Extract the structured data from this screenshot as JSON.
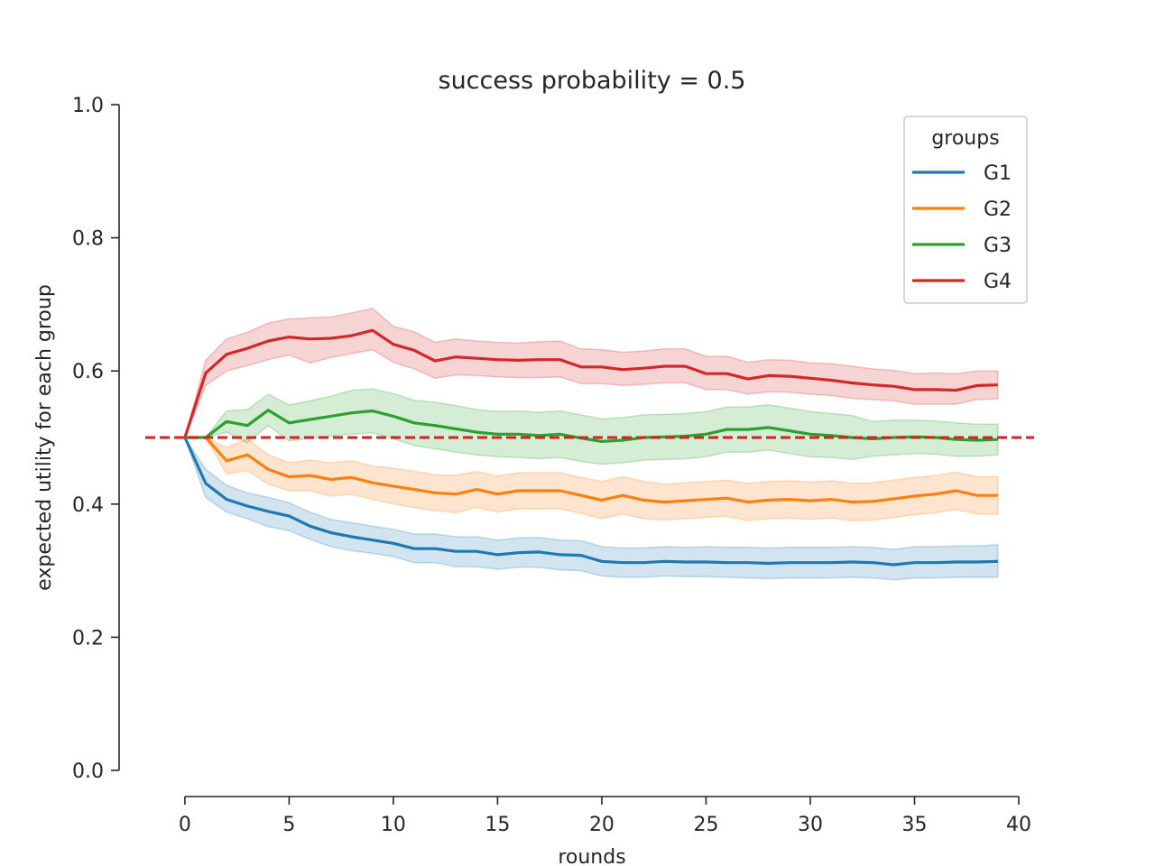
{
  "chart_data": {
    "type": "line",
    "title": "success probability = 0.5",
    "xlabel": "rounds",
    "ylabel": "expected utility for each group",
    "xlim": [
      -1.9,
      40
    ],
    "ylim": [
      0.0,
      1.0
    ],
    "xticks": [
      "0",
      "5",
      "10",
      "15",
      "20",
      "25",
      "30",
      "35",
      "40"
    ],
    "yticks": [
      "0.0",
      "0.2",
      "0.4",
      "0.6",
      "0.8",
      "1.0"
    ],
    "grid": false,
    "legend": {
      "title": "groups",
      "placement": "top-right"
    },
    "reference_line": {
      "y": 0.5,
      "style": "dashed",
      "color": "#e41a1c"
    },
    "x": [
      0,
      1,
      2,
      3,
      4,
      5,
      6,
      7,
      8,
      9,
      10,
      11,
      12,
      13,
      14,
      15,
      16,
      17,
      18,
      19,
      20,
      21,
      22,
      23,
      24,
      25,
      26,
      27,
      28,
      29,
      30,
      31,
      32,
      33,
      34,
      35,
      36,
      37,
      38,
      39
    ],
    "series": [
      {
        "name": "G1",
        "color": "#1f77b4",
        "values": [
          0.5,
          0.431,
          0.407,
          0.397,
          0.389,
          0.382,
          0.367,
          0.357,
          0.351,
          0.346,
          0.341,
          0.333,
          0.333,
          0.329,
          0.329,
          0.324,
          0.327,
          0.328,
          0.324,
          0.323,
          0.314,
          0.312,
          0.312,
          0.314,
          0.313,
          0.313,
          0.312,
          0.312,
          0.311,
          0.312,
          0.312,
          0.312,
          0.313,
          0.312,
          0.309,
          0.312,
          0.312,
          0.313,
          0.313,
          0.314
        ],
        "lower": [
          0.5,
          0.41,
          0.388,
          0.378,
          0.366,
          0.36,
          0.347,
          0.336,
          0.33,
          0.326,
          0.321,
          0.312,
          0.312,
          0.306,
          0.306,
          0.302,
          0.305,
          0.305,
          0.301,
          0.3,
          0.292,
          0.29,
          0.29,
          0.292,
          0.291,
          0.291,
          0.29,
          0.289,
          0.288,
          0.289,
          0.289,
          0.289,
          0.29,
          0.289,
          0.286,
          0.289,
          0.289,
          0.29,
          0.29,
          0.29
        ],
        "upper": [
          0.5,
          0.452,
          0.428,
          0.417,
          0.41,
          0.402,
          0.388,
          0.377,
          0.372,
          0.367,
          0.362,
          0.355,
          0.355,
          0.351,
          0.351,
          0.346,
          0.349,
          0.35,
          0.346,
          0.345,
          0.336,
          0.334,
          0.334,
          0.336,
          0.335,
          0.336,
          0.335,
          0.335,
          0.334,
          0.335,
          0.335,
          0.335,
          0.336,
          0.335,
          0.332,
          0.336,
          0.336,
          0.337,
          0.337,
          0.339
        ]
      },
      {
        "name": "G2",
        "color": "#ff7f0e",
        "values": [
          0.5,
          0.5,
          0.465,
          0.474,
          0.452,
          0.441,
          0.443,
          0.437,
          0.44,
          0.432,
          0.427,
          0.422,
          0.417,
          0.415,
          0.422,
          0.415,
          0.42,
          0.42,
          0.42,
          0.413,
          0.406,
          0.413,
          0.406,
          0.403,
          0.405,
          0.407,
          0.409,
          0.403,
          0.406,
          0.407,
          0.405,
          0.407,
          0.403,
          0.404,
          0.408,
          0.412,
          0.415,
          0.42,
          0.413,
          0.413
        ],
        "lower": [
          0.5,
          0.5,
          0.445,
          0.45,
          0.43,
          0.42,
          0.42,
          0.412,
          0.415,
          0.407,
          0.4,
          0.395,
          0.39,
          0.387,
          0.395,
          0.388,
          0.393,
          0.393,
          0.393,
          0.386,
          0.378,
          0.385,
          0.378,
          0.376,
          0.378,
          0.38,
          0.382,
          0.375,
          0.378,
          0.379,
          0.377,
          0.379,
          0.375,
          0.376,
          0.38,
          0.384,
          0.387,
          0.392,
          0.385,
          0.385
        ],
        "upper": [
          0.5,
          0.5,
          0.485,
          0.498,
          0.474,
          0.462,
          0.466,
          0.462,
          0.465,
          0.457,
          0.454,
          0.449,
          0.444,
          0.443,
          0.449,
          0.442,
          0.447,
          0.447,
          0.447,
          0.44,
          0.434,
          0.441,
          0.434,
          0.43,
          0.432,
          0.434,
          0.436,
          0.431,
          0.434,
          0.435,
          0.433,
          0.435,
          0.431,
          0.432,
          0.436,
          0.44,
          0.443,
          0.448,
          0.441,
          0.441
        ]
      },
      {
        "name": "G3",
        "color": "#2ca02c",
        "values": [
          0.5,
          0.5,
          0.524,
          0.518,
          0.541,
          0.522,
          0.527,
          0.532,
          0.537,
          0.54,
          0.532,
          0.522,
          0.518,
          0.513,
          0.508,
          0.505,
          0.505,
          0.503,
          0.505,
          0.499,
          0.494,
          0.496,
          0.5,
          0.501,
          0.502,
          0.505,
          0.512,
          0.512,
          0.515,
          0.51,
          0.505,
          0.503,
          0.5,
          0.498,
          0.5,
          0.501,
          0.5,
          0.497,
          0.496,
          0.497
        ],
        "lower": [
          0.5,
          0.5,
          0.508,
          0.492,
          0.518,
          0.495,
          0.499,
          0.502,
          0.505,
          0.507,
          0.498,
          0.488,
          0.483,
          0.478,
          0.474,
          0.471,
          0.47,
          0.468,
          0.47,
          0.464,
          0.46,
          0.462,
          0.466,
          0.467,
          0.468,
          0.471,
          0.478,
          0.478,
          0.481,
          0.476,
          0.471,
          0.47,
          0.467,
          0.472,
          0.474,
          0.476,
          0.475,
          0.472,
          0.472,
          0.474
        ],
        "upper": [
          0.5,
          0.5,
          0.54,
          0.542,
          0.565,
          0.549,
          0.555,
          0.562,
          0.571,
          0.573,
          0.566,
          0.556,
          0.553,
          0.548,
          0.542,
          0.539,
          0.54,
          0.538,
          0.54,
          0.534,
          0.528,
          0.53,
          0.534,
          0.535,
          0.536,
          0.539,
          0.546,
          0.546,
          0.549,
          0.544,
          0.539,
          0.536,
          0.533,
          0.524,
          0.526,
          0.526,
          0.525,
          0.522,
          0.52,
          0.52
        ]
      },
      {
        "name": "G4",
        "color": "#d62728",
        "values": [
          0.5,
          0.597,
          0.625,
          0.634,
          0.645,
          0.651,
          0.648,
          0.649,
          0.653,
          0.661,
          0.64,
          0.631,
          0.615,
          0.621,
          0.619,
          0.617,
          0.616,
          0.617,
          0.617,
          0.606,
          0.606,
          0.602,
          0.604,
          0.607,
          0.607,
          0.596,
          0.596,
          0.588,
          0.593,
          0.592,
          0.589,
          0.586,
          0.582,
          0.579,
          0.577,
          0.572,
          0.572,
          0.571,
          0.578,
          0.579
        ],
        "lower": [
          0.5,
          0.578,
          0.6,
          0.608,
          0.617,
          0.624,
          0.612,
          0.62,
          0.626,
          0.632,
          0.613,
          0.603,
          0.589,
          0.594,
          0.593,
          0.591,
          0.59,
          0.59,
          0.591,
          0.581,
          0.581,
          0.578,
          0.58,
          0.582,
          0.582,
          0.572,
          0.572,
          0.565,
          0.569,
          0.568,
          0.565,
          0.563,
          0.559,
          0.557,
          0.555,
          0.55,
          0.55,
          0.55,
          0.557,
          0.558
        ],
        "upper": [
          0.5,
          0.616,
          0.648,
          0.658,
          0.672,
          0.678,
          0.68,
          0.681,
          0.687,
          0.694,
          0.667,
          0.659,
          0.643,
          0.648,
          0.645,
          0.643,
          0.642,
          0.644,
          0.645,
          0.633,
          0.632,
          0.628,
          0.63,
          0.633,
          0.633,
          0.622,
          0.622,
          0.613,
          0.617,
          0.616,
          0.612,
          0.611,
          0.607,
          0.603,
          0.601,
          0.596,
          0.597,
          0.596,
          0.6,
          0.6
        ]
      }
    ]
  }
}
